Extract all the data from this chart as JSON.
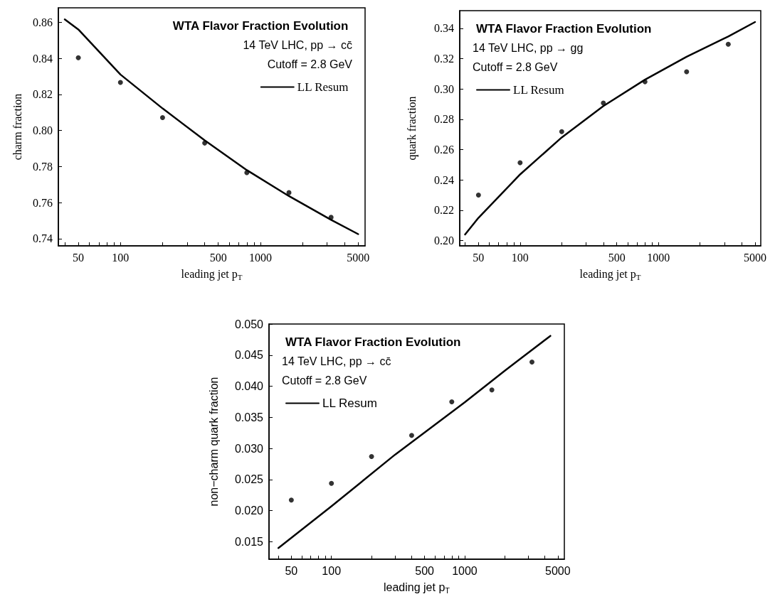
{
  "chart_data": [
    {
      "type": "scatter",
      "title": "WTA Flavor Fraction Evolution",
      "annotations": [
        "14 TeV LHC, pp → cc̄",
        "Cutoff = 2.8 GeV"
      ],
      "xlabel": "leading jet p$_{T}$",
      "ylabel": "charm fraction",
      "log": "x",
      "grid": false,
      "legend": "top right",
      "xlim": [
        36,
        5600
      ],
      "ylim": [
        0.736,
        0.868
      ],
      "xticks": [
        {
          "value": 40,
          "label": null
        },
        50,
        {
          "value": 60,
          "label": null
        },
        {
          "value": 70,
          "label": null
        },
        {
          "value": 80,
          "label": null
        },
        {
          "value": 90,
          "label": null
        },
        100,
        {
          "value": 200,
          "label": null
        },
        {
          "value": 300,
          "label": null
        },
        {
          "value": 400,
          "label": null
        },
        500,
        {
          "value": 600,
          "label": null
        },
        {
          "value": 700,
          "label": null
        },
        {
          "value": 800,
          "label": null
        },
        {
          "value": 900,
          "label": null
        },
        1000,
        {
          "value": 2000,
          "label": null
        },
        {
          "value": 3000,
          "label": null
        },
        {
          "value": 4000,
          "label": null
        },
        5000
      ],
      "yticks": [
        {
          "value": 0.74,
          "label": "0.74"
        },
        {
          "value": 0.76,
          "label": "0.76"
        },
        {
          "value": 0.78,
          "label": "0.78"
        },
        {
          "value": 0.8,
          "label": "0.80"
        },
        {
          "value": 0.82,
          "label": "0.82"
        },
        {
          "value": 0.84,
          "label": "0.84"
        },
        {
          "value": 0.86,
          "label": "0.86"
        }
      ],
      "series": [
        {
          "name": "LL Resum",
          "type": "line",
          "line_style": "solid",
          "color": "#000000",
          "x": [
            40,
            50,
            100,
            200,
            400,
            800,
            1600,
            3200,
            5000
          ],
          "values": [
            0.8616,
            0.856,
            0.831,
            0.8122,
            0.7945,
            0.778,
            0.7636,
            0.7504,
            0.7425
          ]
        },
        {
          "marker": "circle",
          "color": "#000000",
          "x": [
            50,
            100,
            200,
            400,
            800,
            1600,
            3200
          ],
          "values": [
            0.8403,
            0.8266,
            0.8071,
            0.793,
            0.7766,
            0.7655,
            0.7518
          ]
        }
      ]
    },
    {
      "type": "scatter",
      "title": "WTA Flavor Fraction Evolution",
      "annotations": [
        "14 TeV LHC, pp → gg",
        "Cutoff = 2.8 GeV"
      ],
      "xlabel": "leading jet p$_{T}$",
      "ylabel": "quark fraction",
      "log": "x",
      "grid": false,
      "legend": "top left",
      "xlim": [
        36.6,
        5500
      ],
      "ylim": [
        0.1965,
        0.3516
      ],
      "xticks": [
        {
          "value": 40,
          "label": null
        },
        50,
        {
          "value": 60,
          "label": null
        },
        {
          "value": 70,
          "label": null
        },
        {
          "value": 80,
          "label": null
        },
        {
          "value": 90,
          "label": null
        },
        100,
        {
          "value": 200,
          "label": null
        },
        {
          "value": 300,
          "label": null
        },
        {
          "value": 400,
          "label": null
        },
        500,
        {
          "value": 600,
          "label": null
        },
        {
          "value": 700,
          "label": null
        },
        {
          "value": 800,
          "label": null
        },
        {
          "value": 900,
          "label": null
        },
        1000,
        {
          "value": 2000,
          "label": null
        },
        {
          "value": 3000,
          "label": null
        },
        {
          "value": 4000,
          "label": null
        },
        5000
      ],
      "yticks": [
        {
          "value": 0.2,
          "label": "0.20"
        },
        {
          "value": 0.22,
          "label": "0.22"
        },
        {
          "value": 0.24,
          "label": "0.24"
        },
        {
          "value": 0.26,
          "label": "0.26"
        },
        {
          "value": 0.28,
          "label": "0.28"
        },
        {
          "value": 0.3,
          "label": "0.30"
        },
        {
          "value": 0.32,
          "label": "0.32"
        },
        {
          "value": 0.34,
          "label": "0.34"
        }
      ],
      "series": [
        {
          "name": "LL Resum",
          "type": "line",
          "line_style": "solid",
          "color": "#000000",
          "x": [
            40,
            50,
            100,
            200,
            400,
            800,
            1600,
            3200,
            5000
          ],
          "values": [
            0.204,
            0.215,
            0.2436,
            0.268,
            0.2887,
            0.3061,
            0.3212,
            0.3346,
            0.3441
          ]
        },
        {
          "marker": "circle",
          "color": "#000000",
          "x": [
            50,
            100,
            200,
            400,
            800,
            1600,
            3200
          ],
          "values": [
            0.23,
            0.2513,
            0.2718,
            0.2907,
            0.3047,
            0.3113,
            0.3295
          ]
        }
      ]
    },
    {
      "type": "scatter",
      "title": "WTA Flavor Fraction Evolution",
      "annotations": [
        "14 TeV LHC, pp → cc̄",
        "Cutoff = 2.8 GeV"
      ],
      "xlabel": "leading jet p$_{T}$",
      "ylabel": "non−charm quark fraction",
      "log": "x",
      "grid": false,
      "legend": "top left",
      "xlim": [
        34,
        5600
      ],
      "ylim": [
        0.0122,
        0.05
      ],
      "xticks": [
        {
          "value": 40,
          "label": null
        },
        50,
        {
          "value": 60,
          "label": null
        },
        {
          "value": 70,
          "label": null
        },
        {
          "value": 80,
          "label": null
        },
        {
          "value": 90,
          "label": null
        },
        100,
        {
          "value": 200,
          "label": null
        },
        {
          "value": 300,
          "label": null
        },
        {
          "value": 400,
          "label": null
        },
        500,
        {
          "value": 600,
          "label": null
        },
        {
          "value": 700,
          "label": null
        },
        {
          "value": 800,
          "label": null
        },
        {
          "value": 900,
          "label": null
        },
        1000,
        {
          "value": 2000,
          "label": null
        },
        {
          "value": 3000,
          "label": null
        },
        {
          "value": 4000,
          "label": null
        },
        5000
      ],
      "yticks": [
        {
          "value": 0.015,
          "label": "0.015"
        },
        {
          "value": 0.02,
          "label": "0.020"
        },
        {
          "value": 0.025,
          "label": "0.025"
        },
        {
          "value": 0.03,
          "label": "0.030"
        },
        {
          "value": 0.035,
          "label": "0.035"
        },
        {
          "value": 0.04,
          "label": "0.040"
        },
        {
          "value": 0.045,
          "label": "0.045"
        },
        {
          "value": 0.05,
          "label": "0.050"
        }
      ],
      "series": [
        {
          "name": "LL Resum",
          "type": "line",
          "line_style": "solid",
          "color": "#000000",
          "x": [
            40,
            100,
            300,
            1000,
            2000,
            4400
          ],
          "values": [
            0.014,
            0.0207,
            0.029,
            0.0374,
            0.0425,
            0.0481
          ]
        },
        {
          "marker": "circle",
          "color": "#000000",
          "x": [
            50,
            100,
            200,
            400,
            800,
            1600,
            3200
          ],
          "values": [
            0.0217,
            0.0244,
            0.0287,
            0.0321,
            0.0375,
            0.0394,
            0.0439
          ]
        }
      ]
    }
  ]
}
